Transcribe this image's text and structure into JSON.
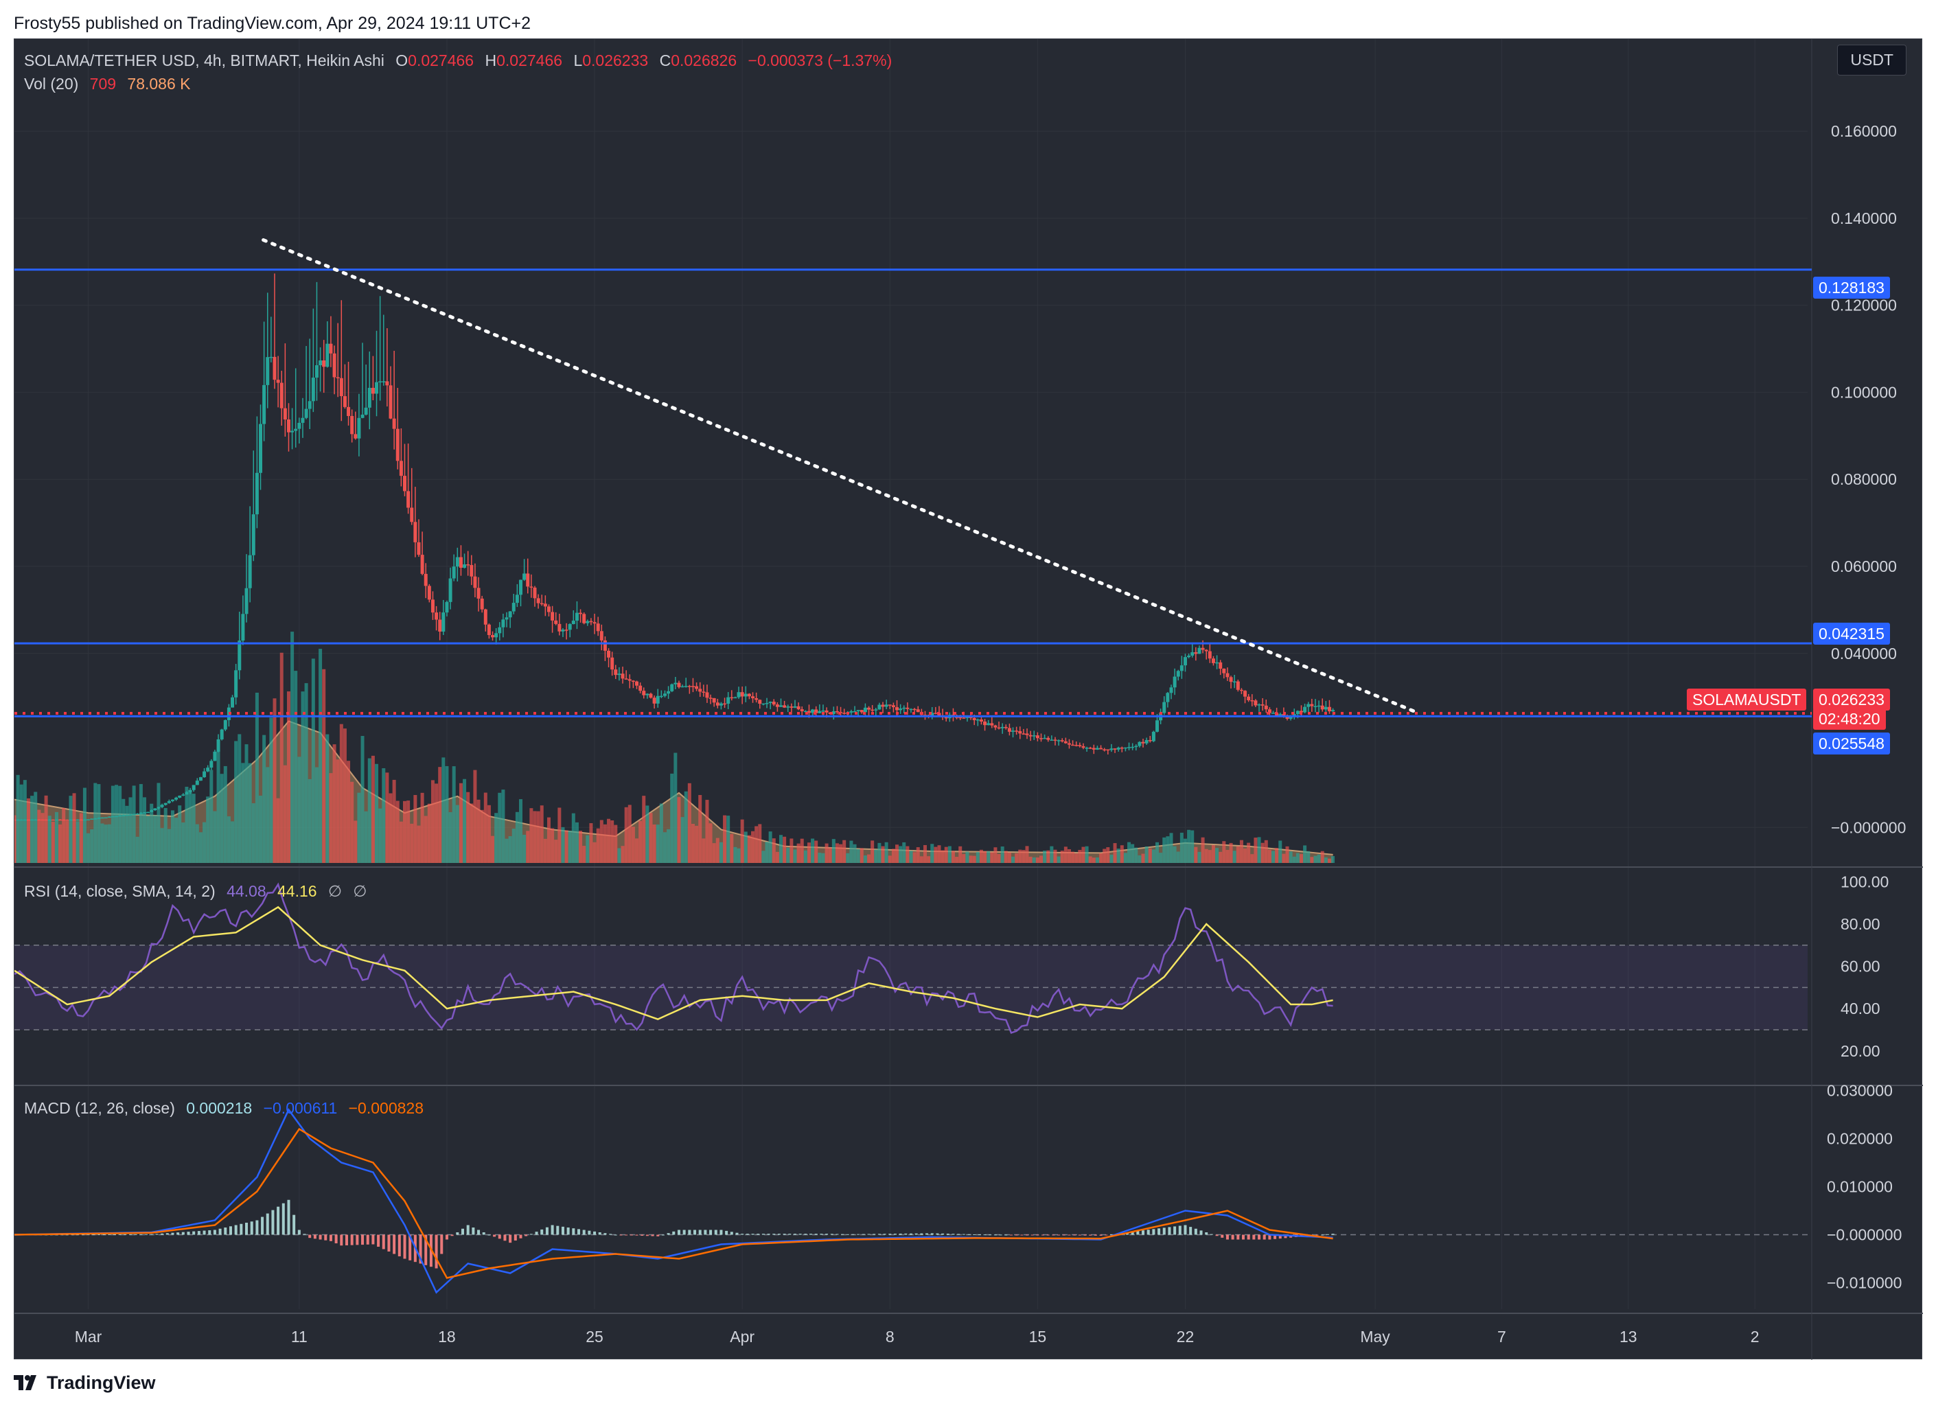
{
  "header": {
    "text": "Frosty55 published on TradingView.com, Apr 29, 2024 19:11 UTC+2"
  },
  "footer": {
    "brand": "TradingView"
  },
  "currency_button": "USDT",
  "legend": {
    "symbol": "SOLAMA/TETHER USD, 4h, BITMART, Heikin Ashi",
    "o_label": "O",
    "o_value": "0.027466",
    "h_label": "H",
    "h_value": "0.027466",
    "l_label": "L",
    "l_value": "0.026233",
    "c_label": "C",
    "c_value": "0.026826",
    "change": "−0.000373 (−1.37%)",
    "vol_label": "Vol (20)",
    "vol_value": "709",
    "vol_ma": "78.086 K"
  },
  "rsi_legend": {
    "label": "RSI (14, close, SMA, 14, 2)",
    "rsi": "44.08",
    "sma": "44.16",
    "null1": "∅",
    "null2": "∅"
  },
  "macd_legend": {
    "label": "MACD (12, 26, close)",
    "hist": "0.000218",
    "macd": "−0.000611",
    "signal": "−0.000828"
  },
  "price_tags": {
    "resistance_top": "0.128183",
    "resistance_mid": "0.042315",
    "symbol_tag": "SOLAMAUSDT",
    "last_price": "0.026233",
    "countdown": "02:48:20",
    "support": "0.025548"
  },
  "colors": {
    "up": "#26a69a",
    "down": "#ef5350",
    "level": "#2962ff",
    "rsi": "#7e57c2",
    "rsi_sma": "#f5e663",
    "macd": "#2962ff",
    "signal": "#ff6d00",
    "price_line": "#f23645"
  },
  "chart_data": {
    "type": "candlestick",
    "title": "SOLAMA/TETHER USD, 4h, BITMART, Heikin Ashi",
    "price_axis": {
      "ticks": [
        "0.160000",
        "0.140000",
        "0.120000",
        "0.100000",
        "0.080000",
        "0.060000",
        "0.040000",
        "−0.000000"
      ],
      "tick_values": [
        0.16,
        0.14,
        0.12,
        0.1,
        0.08,
        0.06,
        0.04,
        0.0
      ],
      "range": [
        -0.005,
        0.178
      ]
    },
    "date_axis": {
      "ticks": [
        "Mar",
        "11",
        "18",
        "25",
        "Apr",
        "8",
        "15",
        "22",
        "May",
        "7",
        "13",
        "2"
      ],
      "tick_days": [
        0,
        10,
        17,
        24,
        31,
        38,
        45,
        52,
        61,
        67,
        73,
        79
      ],
      "range_days": [
        -3.5,
        81.5
      ],
      "start_label": "Mar 1, 2024"
    },
    "horizontal_levels": [
      0.128183,
      0.042315,
      0.025548
    ],
    "last_price": 0.026233,
    "trendline": {
      "from": {
        "day": 8.3,
        "price": 0.135
      },
      "to": {
        "day": 63.1,
        "price": 0.0262
      }
    },
    "price_path": [
      {
        "d": -3.5,
        "p": 0.0018
      },
      {
        "d": 0,
        "p": 0.0018
      },
      {
        "d": 3,
        "p": 0.0035
      },
      {
        "d": 5,
        "p": 0.0085
      },
      {
        "d": 6,
        "p": 0.015
      },
      {
        "d": 7,
        "p": 0.03
      },
      {
        "d": 7.8,
        "p": 0.06
      },
      {
        "d": 8.3,
        "p": 0.09
      },
      {
        "d": 8.7,
        "p": 0.11
      },
      {
        "d": 9.2,
        "p": 0.1
      },
      {
        "d": 9.8,
        "p": 0.09
      },
      {
        "d": 10.5,
        "p": 0.095
      },
      {
        "d": 11,
        "p": 0.105
      },
      {
        "d": 11.6,
        "p": 0.11
      },
      {
        "d": 12.2,
        "p": 0.098
      },
      {
        "d": 12.8,
        "p": 0.09
      },
      {
        "d": 13.5,
        "p": 0.1
      },
      {
        "d": 14.3,
        "p": 0.102
      },
      {
        "d": 15,
        "p": 0.08
      },
      {
        "d": 15.6,
        "p": 0.068
      },
      {
        "d": 16.2,
        "p": 0.055
      },
      {
        "d": 16.8,
        "p": 0.045
      },
      {
        "d": 17.6,
        "p": 0.062
      },
      {
        "d": 18.4,
        "p": 0.058
      },
      {
        "d": 19.2,
        "p": 0.043
      },
      {
        "d": 20,
        "p": 0.048
      },
      {
        "d": 20.8,
        "p": 0.058
      },
      {
        "d": 21.8,
        "p": 0.05
      },
      {
        "d": 22.6,
        "p": 0.045
      },
      {
        "d": 23.3,
        "p": 0.049
      },
      {
        "d": 24.3,
        "p": 0.046
      },
      {
        "d": 25,
        "p": 0.036
      },
      {
        "d": 26,
        "p": 0.033
      },
      {
        "d": 27,
        "p": 0.029
      },
      {
        "d": 28,
        "p": 0.033
      },
      {
        "d": 29,
        "p": 0.032
      },
      {
        "d": 30,
        "p": 0.028
      },
      {
        "d": 31,
        "p": 0.031
      },
      {
        "d": 32,
        "p": 0.029
      },
      {
        "d": 34,
        "p": 0.027
      },
      {
        "d": 36,
        "p": 0.026
      },
      {
        "d": 38,
        "p": 0.028
      },
      {
        "d": 40,
        "p": 0.026
      },
      {
        "d": 42,
        "p": 0.025
      },
      {
        "d": 44,
        "p": 0.022
      },
      {
        "d": 46,
        "p": 0.02
      },
      {
        "d": 47.5,
        "p": 0.018
      },
      {
        "d": 49,
        "p": 0.018
      },
      {
        "d": 50.5,
        "p": 0.02
      },
      {
        "d": 51.3,
        "p": 0.03
      },
      {
        "d": 52,
        "p": 0.038
      },
      {
        "d": 53,
        "p": 0.041
      },
      {
        "d": 54,
        "p": 0.036
      },
      {
        "d": 55,
        "p": 0.03
      },
      {
        "d": 56,
        "p": 0.027
      },
      {
        "d": 57,
        "p": 0.025
      },
      {
        "d": 58,
        "p": 0.028
      },
      {
        "d": 59,
        "p": 0.027
      }
    ],
    "volume_profile_ma": [
      {
        "d": -3.5,
        "v": 0.38
      },
      {
        "d": 0,
        "v": 0.3
      },
      {
        "d": 4,
        "v": 0.28
      },
      {
        "d": 6,
        "v": 0.4
      },
      {
        "d": 8,
        "v": 0.62
      },
      {
        "d": 9.5,
        "v": 0.85
      },
      {
        "d": 11,
        "v": 0.78
      },
      {
        "d": 13,
        "v": 0.45
      },
      {
        "d": 15,
        "v": 0.3
      },
      {
        "d": 17.5,
        "v": 0.4
      },
      {
        "d": 19,
        "v": 0.28
      },
      {
        "d": 22,
        "v": 0.2
      },
      {
        "d": 25,
        "v": 0.16
      },
      {
        "d": 28,
        "v": 0.42
      },
      {
        "d": 30,
        "v": 0.2
      },
      {
        "d": 33,
        "v": 0.1
      },
      {
        "d": 40,
        "v": 0.07
      },
      {
        "d": 48,
        "v": 0.06
      },
      {
        "d": 52,
        "v": 0.12
      },
      {
        "d": 55,
        "v": 0.1
      },
      {
        "d": 59,
        "v": 0.05
      }
    ],
    "rsi_axis": {
      "ticks": [
        "100.00",
        "80.00",
        "60.00",
        "40.00",
        "20.00"
      ],
      "tick_values": [
        100,
        80,
        60,
        40,
        20
      ],
      "bands": [
        70,
        50,
        30
      ],
      "range": [
        5,
        105
      ]
    },
    "rsi": [
      {
        "d": -3.5,
        "v": 60
      },
      {
        "d": -2,
        "v": 45
      },
      {
        "d": -0.5,
        "v": 38
      },
      {
        "d": 1,
        "v": 48
      },
      {
        "d": 2.5,
        "v": 58
      },
      {
        "d": 4,
        "v": 85
      },
      {
        "d": 5,
        "v": 78
      },
      {
        "d": 6,
        "v": 86
      },
      {
        "d": 7,
        "v": 80
      },
      {
        "d": 8,
        "v": 88
      },
      {
        "d": 9,
        "v": 96
      },
      {
        "d": 10,
        "v": 70
      },
      {
        "d": 11,
        "v": 62
      },
      {
        "d": 12,
        "v": 68
      },
      {
        "d": 13,
        "v": 55
      },
      {
        "d": 14,
        "v": 62
      },
      {
        "d": 15,
        "v": 50
      },
      {
        "d": 16,
        "v": 38
      },
      {
        "d": 17,
        "v": 32
      },
      {
        "d": 18,
        "v": 50
      },
      {
        "d": 19,
        "v": 40
      },
      {
        "d": 20,
        "v": 55
      },
      {
        "d": 21,
        "v": 45
      },
      {
        "d": 22,
        "v": 48
      },
      {
        "d": 23,
        "v": 42
      },
      {
        "d": 24,
        "v": 45
      },
      {
        "d": 25,
        "v": 35
      },
      {
        "d": 26,
        "v": 30
      },
      {
        "d": 27,
        "v": 50
      },
      {
        "d": 28,
        "v": 42
      },
      {
        "d": 29,
        "v": 44
      },
      {
        "d": 30,
        "v": 38
      },
      {
        "d": 31,
        "v": 55
      },
      {
        "d": 32,
        "v": 42
      },
      {
        "d": 34,
        "v": 40
      },
      {
        "d": 36,
        "v": 45
      },
      {
        "d": 37,
        "v": 65
      },
      {
        "d": 38,
        "v": 52
      },
      {
        "d": 40,
        "v": 45
      },
      {
        "d": 42,
        "v": 44
      },
      {
        "d": 43,
        "v": 35
      },
      {
        "d": 44,
        "v": 30
      },
      {
        "d": 45,
        "v": 40
      },
      {
        "d": 46,
        "v": 48
      },
      {
        "d": 47,
        "v": 38
      },
      {
        "d": 48,
        "v": 42
      },
      {
        "d": 49,
        "v": 40
      },
      {
        "d": 50,
        "v": 55
      },
      {
        "d": 51,
        "v": 62
      },
      {
        "d": 52,
        "v": 86
      },
      {
        "d": 53,
        "v": 78
      },
      {
        "d": 54,
        "v": 55
      },
      {
        "d": 55,
        "v": 45
      },
      {
        "d": 56,
        "v": 38
      },
      {
        "d": 57,
        "v": 36
      },
      {
        "d": 58,
        "v": 50
      },
      {
        "d": 59,
        "v": 44
      }
    ],
    "rsi_sma": [
      {
        "d": -3.5,
        "v": 58
      },
      {
        "d": -1,
        "v": 42
      },
      {
        "d": 1,
        "v": 46
      },
      {
        "d": 3,
        "v": 62
      },
      {
        "d": 5,
        "v": 74
      },
      {
        "d": 7,
        "v": 76
      },
      {
        "d": 9,
        "v": 88
      },
      {
        "d": 11,
        "v": 70
      },
      {
        "d": 13,
        "v": 63
      },
      {
        "d": 15,
        "v": 58
      },
      {
        "d": 17,
        "v": 40
      },
      {
        "d": 19,
        "v": 44
      },
      {
        "d": 21,
        "v": 46
      },
      {
        "d": 23,
        "v": 48
      },
      {
        "d": 25,
        "v": 42
      },
      {
        "d": 27,
        "v": 35
      },
      {
        "d": 29,
        "v": 44
      },
      {
        "d": 31,
        "v": 46
      },
      {
        "d": 33,
        "v": 44
      },
      {
        "d": 35,
        "v": 44
      },
      {
        "d": 37,
        "v": 52
      },
      {
        "d": 39,
        "v": 48
      },
      {
        "d": 41,
        "v": 45
      },
      {
        "d": 43,
        "v": 40
      },
      {
        "d": 45,
        "v": 36
      },
      {
        "d": 47,
        "v": 42
      },
      {
        "d": 49,
        "v": 40
      },
      {
        "d": 51,
        "v": 55
      },
      {
        "d": 53,
        "v": 80
      },
      {
        "d": 55,
        "v": 62
      },
      {
        "d": 57,
        "v": 42
      },
      {
        "d": 58,
        "v": 42
      },
      {
        "d": 59,
        "v": 44
      }
    ],
    "macd_axis": {
      "ticks": [
        "0.030000",
        "0.020000",
        "0.010000",
        "−0.000000",
        "−0.010000"
      ],
      "tick_values": [
        0.03,
        0.02,
        0.01,
        0,
        -0.01
      ],
      "range": [
        -0.0155,
        0.0305
      ]
    },
    "macd": [
      {
        "d": -3.5,
        "v": 0.0
      },
      {
        "d": 3,
        "v": 0.0005
      },
      {
        "d": 6,
        "v": 0.003
      },
      {
        "d": 8,
        "v": 0.012
      },
      {
        "d": 9.5,
        "v": 0.026
      },
      {
        "d": 10.5,
        "v": 0.02
      },
      {
        "d": 12,
        "v": 0.015
      },
      {
        "d": 13.5,
        "v": 0.013
      },
      {
        "d": 15,
        "v": 0.002
      },
      {
        "d": 16.5,
        "v": -0.012
      },
      {
        "d": 18,
        "v": -0.006
      },
      {
        "d": 20,
        "v": -0.008
      },
      {
        "d": 22,
        "v": -0.003
      },
      {
        "d": 25,
        "v": -0.004
      },
      {
        "d": 27,
        "v": -0.005
      },
      {
        "d": 30,
        "v": -0.002
      },
      {
        "d": 35,
        "v": -0.001
      },
      {
        "d": 40,
        "v": -0.0005
      },
      {
        "d": 48,
        "v": -0.001
      },
      {
        "d": 52,
        "v": 0.005
      },
      {
        "d": 54,
        "v": 0.004
      },
      {
        "d": 56,
        "v": 0.0
      },
      {
        "d": 59,
        "v": -0.0006
      }
    ],
    "macd_signal": [
      {
        "d": -3.5,
        "v": 0.0
      },
      {
        "d": 3,
        "v": 0.0004
      },
      {
        "d": 6,
        "v": 0.002
      },
      {
        "d": 8,
        "v": 0.009
      },
      {
        "d": 10,
        "v": 0.022
      },
      {
        "d": 11.5,
        "v": 0.018
      },
      {
        "d": 13.5,
        "v": 0.015
      },
      {
        "d": 15,
        "v": 0.007
      },
      {
        "d": 17,
        "v": -0.009
      },
      {
        "d": 19,
        "v": -0.007
      },
      {
        "d": 22,
        "v": -0.005
      },
      {
        "d": 25,
        "v": -0.004
      },
      {
        "d": 28,
        "v": -0.005
      },
      {
        "d": 31,
        "v": -0.002
      },
      {
        "d": 36,
        "v": -0.001
      },
      {
        "d": 42,
        "v": -0.0007
      },
      {
        "d": 48,
        "v": -0.0008
      },
      {
        "d": 52,
        "v": 0.003
      },
      {
        "d": 54,
        "v": 0.005
      },
      {
        "d": 56,
        "v": 0.001
      },
      {
        "d": 59,
        "v": -0.0008
      }
    ]
  }
}
